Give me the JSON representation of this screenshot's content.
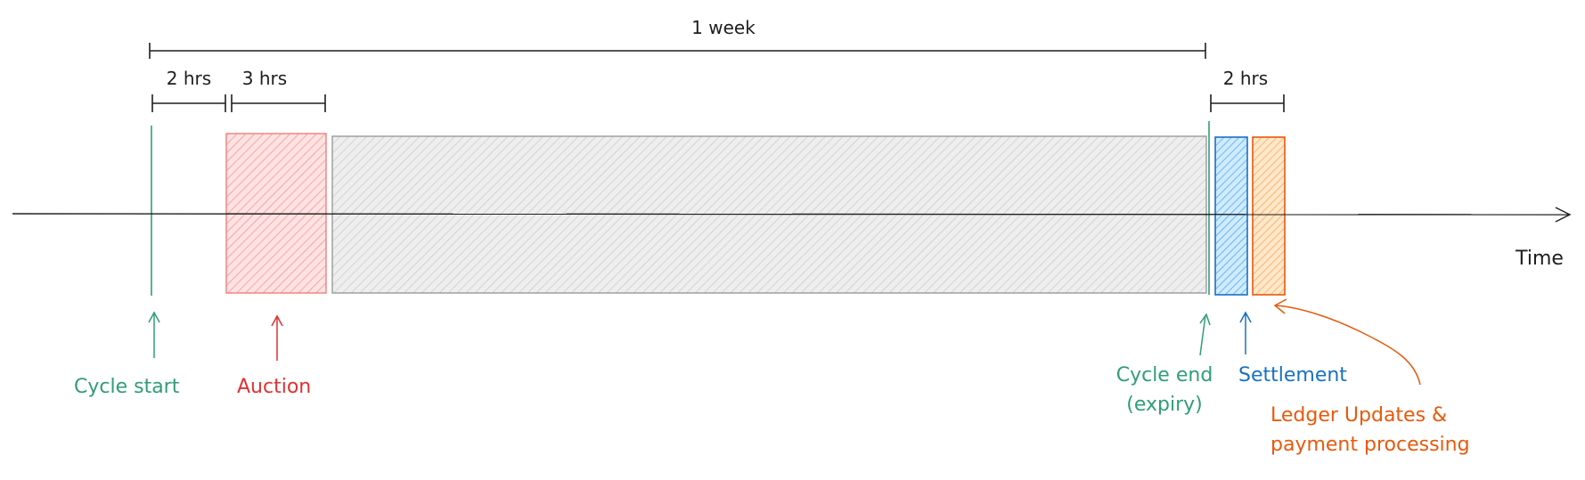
{
  "colors": {
    "ink": "#1e1e1e",
    "green": "#2f9e77",
    "red": "#e03131",
    "red_fill": "#ffc9c9",
    "gray_fill": "#dcdcdc",
    "gray_stroke": "#9a9a9a",
    "blue": "#1971c2",
    "blue_fill": "#a5d8ff",
    "orange": "#e8590c",
    "orange_fill": "#ffc078"
  },
  "dimensions": {
    "week": "1 week",
    "pre_auction": "2 hrs",
    "auction": "3 hrs",
    "post_cycle": "2 hrs"
  },
  "axis": {
    "label": "Time"
  },
  "markers": {
    "cycle_start": "Cycle start",
    "auction": "Auction",
    "cycle_end_line1": "Cycle end",
    "cycle_end_line2": "(expiry)",
    "settlement": "Settlement",
    "ledger_line1": "Ledger Updates &",
    "ledger_line2": "payment processing"
  }
}
